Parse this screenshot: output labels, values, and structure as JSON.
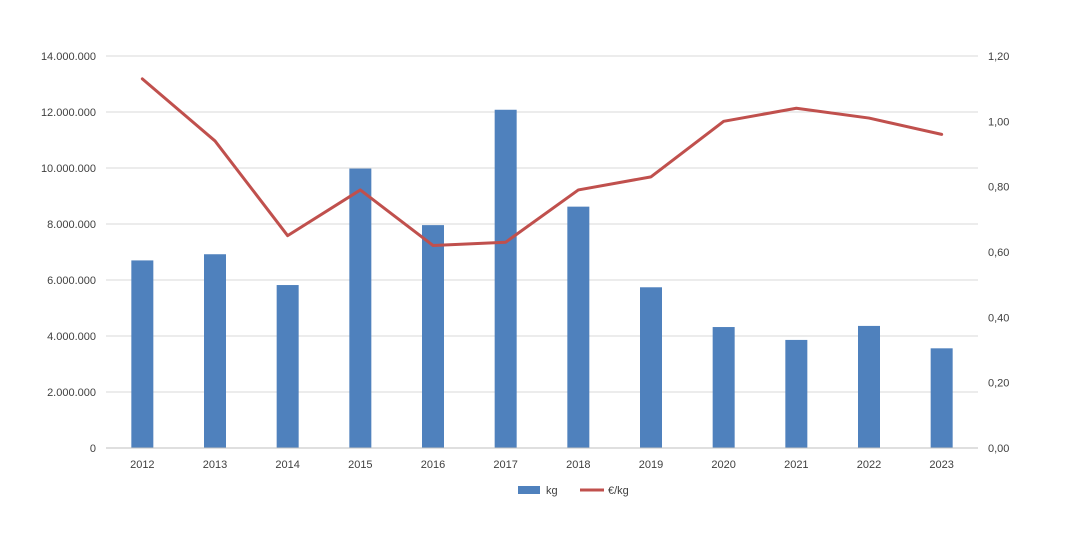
{
  "chart_data": {
    "type": "bar",
    "categories": [
      "2012",
      "2013",
      "2014",
      "2015",
      "2016",
      "2017",
      "2018",
      "2019",
      "2020",
      "2021",
      "2022",
      "2023"
    ],
    "series": [
      {
        "name": "kg",
        "type": "bar",
        "axis": "left",
        "color": "#4f81bd",
        "values": [
          6700000,
          6920000,
          5820000,
          9980000,
          7960000,
          12080000,
          8620000,
          5740000,
          4320000,
          3860000,
          4360000,
          3560000
        ]
      },
      {
        "name": "€/kg",
        "type": "line",
        "axis": "right",
        "color": "#c0504d",
        "values": [
          1.13,
          0.94,
          0.65,
          0.79,
          0.62,
          0.63,
          0.79,
          0.83,
          1.0,
          1.04,
          1.01,
          0.96
        ]
      }
    ],
    "y_left": {
      "ylim": [
        0,
        14000000
      ],
      "ticks": [
        0,
        2000000,
        4000000,
        6000000,
        8000000,
        10000000,
        12000000,
        14000000
      ],
      "tick_labels": [
        "0",
        "2.000.000",
        "4.000.000",
        "6.000.000",
        "8.000.000",
        "10.000.000",
        "12.000.000",
        "14.000.000"
      ]
    },
    "y_right": {
      "ylim": [
        0,
        1.2
      ],
      "ticks": [
        0,
        0.2,
        0.4,
        0.6,
        0.8,
        1.0,
        1.2
      ],
      "tick_labels": [
        "0,00",
        "0,20",
        "0,40",
        "0,60",
        "0,80",
        "1,00",
        "1,20"
      ]
    },
    "grid": true,
    "legend": "bottom-center",
    "gridline_color": "#d9d9d9",
    "axis_line_color": "#bfbfbf"
  }
}
